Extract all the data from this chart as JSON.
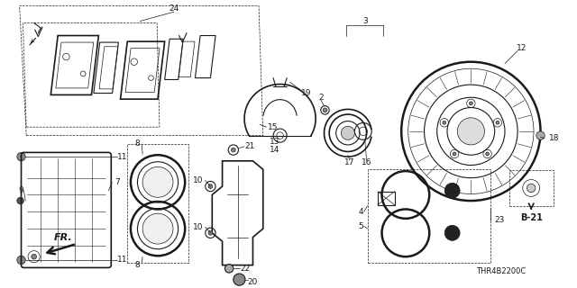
{
  "bg_color": "#ffffff",
  "line_color": "#1a1a1a",
  "fig_width": 6.4,
  "fig_height": 3.2,
  "dpi": 100,
  "diagram_code": "THR4B2200C"
}
